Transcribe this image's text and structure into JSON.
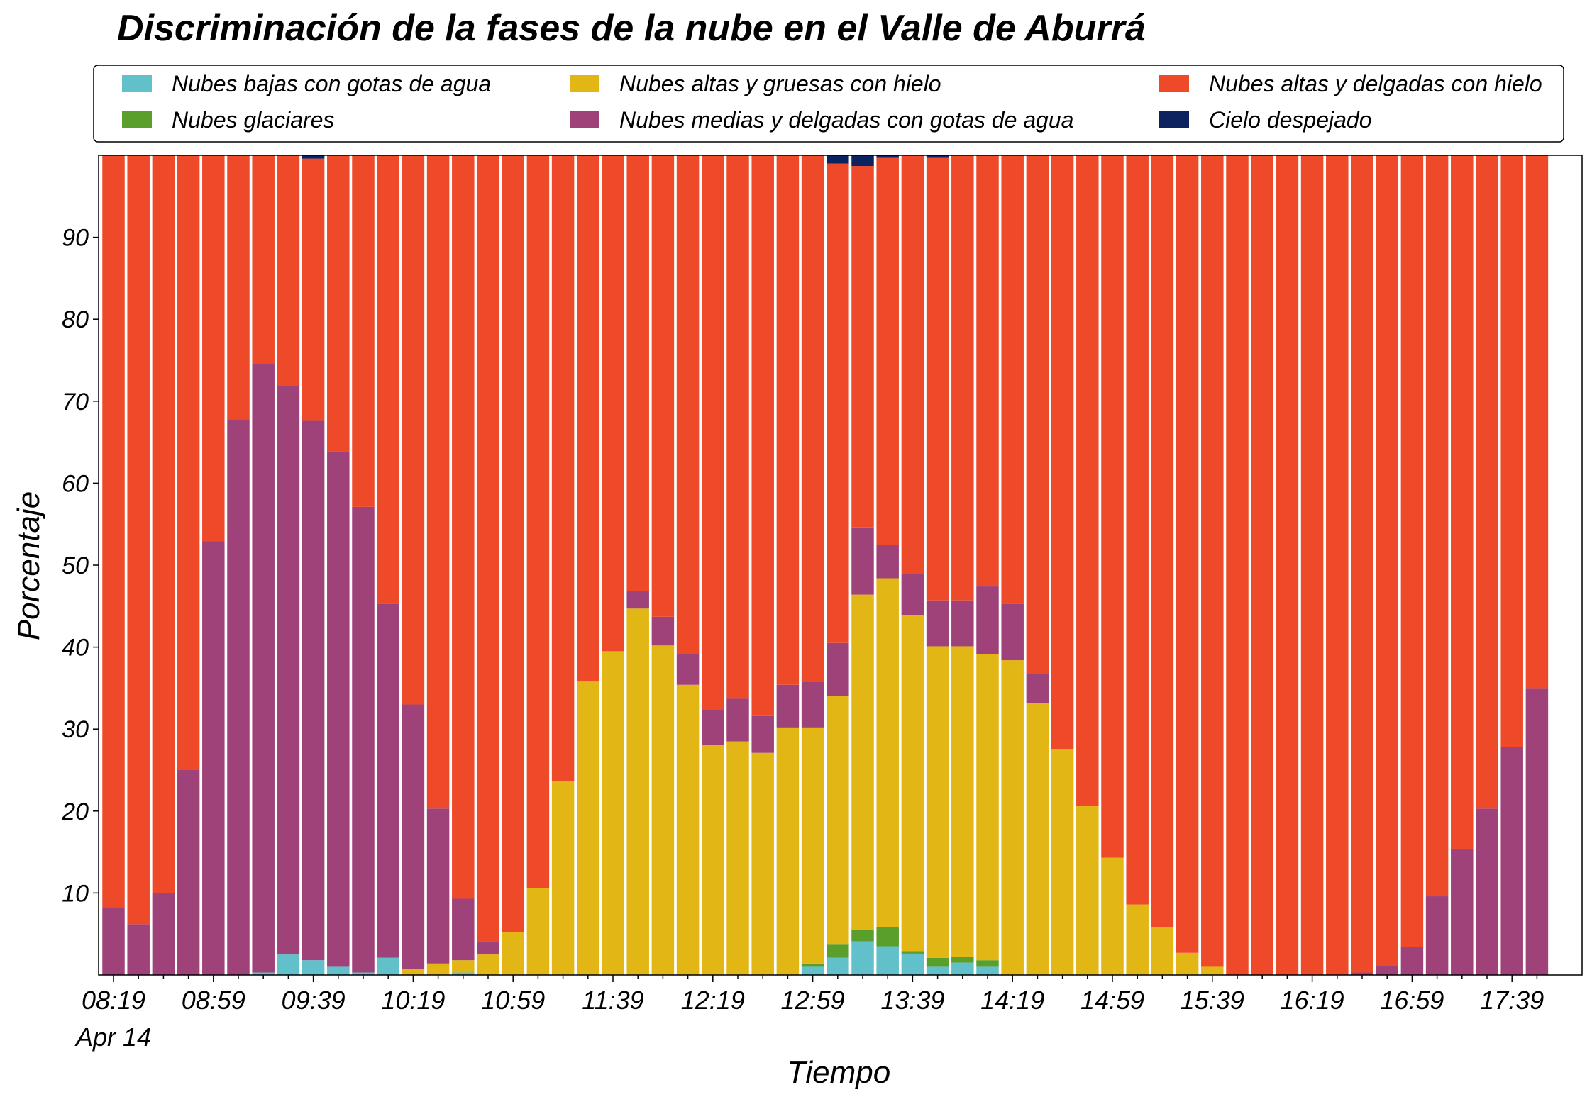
{
  "chart_data": {
    "type": "stacked_bar",
    "title": "Discriminación de la fases de la nube en el Valle de Aburrá",
    "x_label": "Tiempo",
    "y_label": "Porcentaje",
    "date_label": "Apr 14",
    "legend": "upper center",
    "categories": [
      "08:19",
      null,
      null,
      null,
      "08:59",
      null,
      null,
      null,
      "09:39",
      null,
      null,
      null,
      "10:19",
      null,
      null,
      null,
      "10:59",
      null,
      null,
      null,
      "11:39",
      null,
      null,
      null,
      "12:19",
      null,
      null,
      null,
      "12:59",
      null,
      null,
      null,
      "13:39",
      null,
      null,
      null,
      "14:19",
      null,
      null,
      null,
      "14:59",
      null,
      null,
      null,
      "15:39",
      null,
      null,
      null,
      "16:19",
      null,
      null,
      null,
      "16:59",
      null,
      null,
      null,
      "17:39",
      null
    ],
    "ylim": [
      0,
      100
    ],
    "yticks": [
      10,
      20,
      30,
      40,
      50,
      60,
      70,
      80,
      90
    ],
    "series": [
      {
        "name": "Nubes bajas con gotas de agua",
        "color": "#62c0cb",
        "values": [
          0,
          0,
          0,
          0,
          0,
          0,
          0.3,
          2.5,
          1.8,
          1.0,
          0.3,
          2.1,
          0,
          0,
          0.3,
          0,
          0,
          0,
          0,
          0,
          0,
          0,
          0,
          0,
          0,
          0,
          0,
          0,
          1.0,
          2.1,
          4.1,
          3.5,
          2.6,
          1.0,
          1.5,
          1.0,
          0,
          0,
          0,
          0,
          0,
          0,
          0,
          0,
          0,
          0,
          0,
          0,
          0,
          0,
          0,
          0,
          0,
          0,
          0,
          0,
          0,
          0
        ]
      },
      {
        "name": "Nubes glaciares",
        "color": "#5a9e2c",
        "values": [
          0,
          0,
          0,
          0,
          0,
          0,
          0,
          0,
          0,
          0,
          0,
          0,
          0,
          0,
          0,
          0,
          0,
          0,
          0,
          0,
          0,
          0,
          0,
          0,
          0,
          0,
          0,
          0,
          0.4,
          1.6,
          1.4,
          2.3,
          0.3,
          1.1,
          0.7,
          0.8,
          0,
          0,
          0,
          0,
          0,
          0,
          0,
          0,
          0,
          0,
          0,
          0,
          0,
          0,
          0,
          0,
          0,
          0,
          0,
          0,
          0,
          0
        ]
      },
      {
        "name": "Nubes altas y gruesas con hielo",
        "color": "#e2b614",
        "values": [
          0,
          0,
          0,
          0,
          0,
          0,
          0,
          0,
          0,
          0,
          0,
          0,
          0.7,
          1.4,
          1.5,
          2.5,
          5.2,
          10.6,
          23.7,
          35.8,
          39.5,
          44.7,
          40.2,
          35.4,
          28.1,
          28.5,
          27.1,
          30.2,
          28.8,
          30.3,
          40.9,
          42.6,
          41.0,
          38.0,
          37.9,
          37.3,
          38.4,
          33.2,
          27.5,
          20.6,
          14.3,
          8.6,
          5.8,
          2.7,
          1.0,
          0,
          0,
          0,
          0,
          0,
          0,
          0,
          0,
          0,
          0,
          0,
          0,
          0
        ]
      },
      {
        "name": "Nubes medias y delgadas con gotas de agua",
        "color": "#a0427a",
        "values": [
          8.2,
          6.2,
          10.0,
          25.0,
          52.9,
          67.7,
          74.2,
          69.3,
          65.8,
          62.9,
          56.8,
          43.2,
          32.3,
          18.9,
          7.5,
          1.6,
          0,
          0,
          0,
          0,
          0,
          2.1,
          3.5,
          3.7,
          4.2,
          5.2,
          4.5,
          5.2,
          5.6,
          6.5,
          8.2,
          4.1,
          5.1,
          5.6,
          5.6,
          8.3,
          6.9,
          3.5,
          0,
          0,
          0,
          0,
          0,
          0,
          0,
          0,
          0,
          0,
          0,
          0,
          0.3,
          1.2,
          3.4,
          9.6,
          15.4,
          20.3,
          27.8,
          35.0
        ]
      },
      {
        "name": "Nubes altas y delgadas con hielo",
        "color": "#ee4a2a",
        "values": [
          91.8,
          93.8,
          90.0,
          75.0,
          47.1,
          32.3,
          25.5,
          28.2,
          32.0,
          36.1,
          42.9,
          54.7,
          67.0,
          79.7,
          90.7,
          95.9,
          94.8,
          89.4,
          76.3,
          64.2,
          60.5,
          53.2,
          56.3,
          60.9,
          67.7,
          66.3,
          68.4,
          64.6,
          64.2,
          58.5,
          44.1,
          47.2,
          51.0,
          54.0,
          54.3,
          52.6,
          54.7,
          63.3,
          72.5,
          79.4,
          85.7,
          91.4,
          94.2,
          97.3,
          99.0,
          100,
          100,
          100,
          100,
          100,
          99.7,
          98.8,
          96.6,
          90.4,
          84.6,
          79.7,
          72.2,
          65.0
        ]
      },
      {
        "name": "Cielo despejado",
        "color": "#0c2360",
        "values": [
          0,
          0,
          0,
          0,
          0,
          0,
          0,
          0,
          0.4,
          0,
          0,
          0,
          0,
          0,
          0,
          0,
          0,
          0,
          0,
          0,
          0,
          0,
          0,
          0,
          0,
          0,
          0,
          0,
          0,
          1.0,
          1.3,
          0.3,
          0,
          0.3,
          0,
          0,
          0,
          0,
          0,
          0,
          0,
          0,
          0,
          0,
          0,
          0,
          0,
          0,
          0,
          0,
          0,
          0,
          0,
          0,
          0,
          0,
          0,
          0
        ]
      }
    ]
  }
}
